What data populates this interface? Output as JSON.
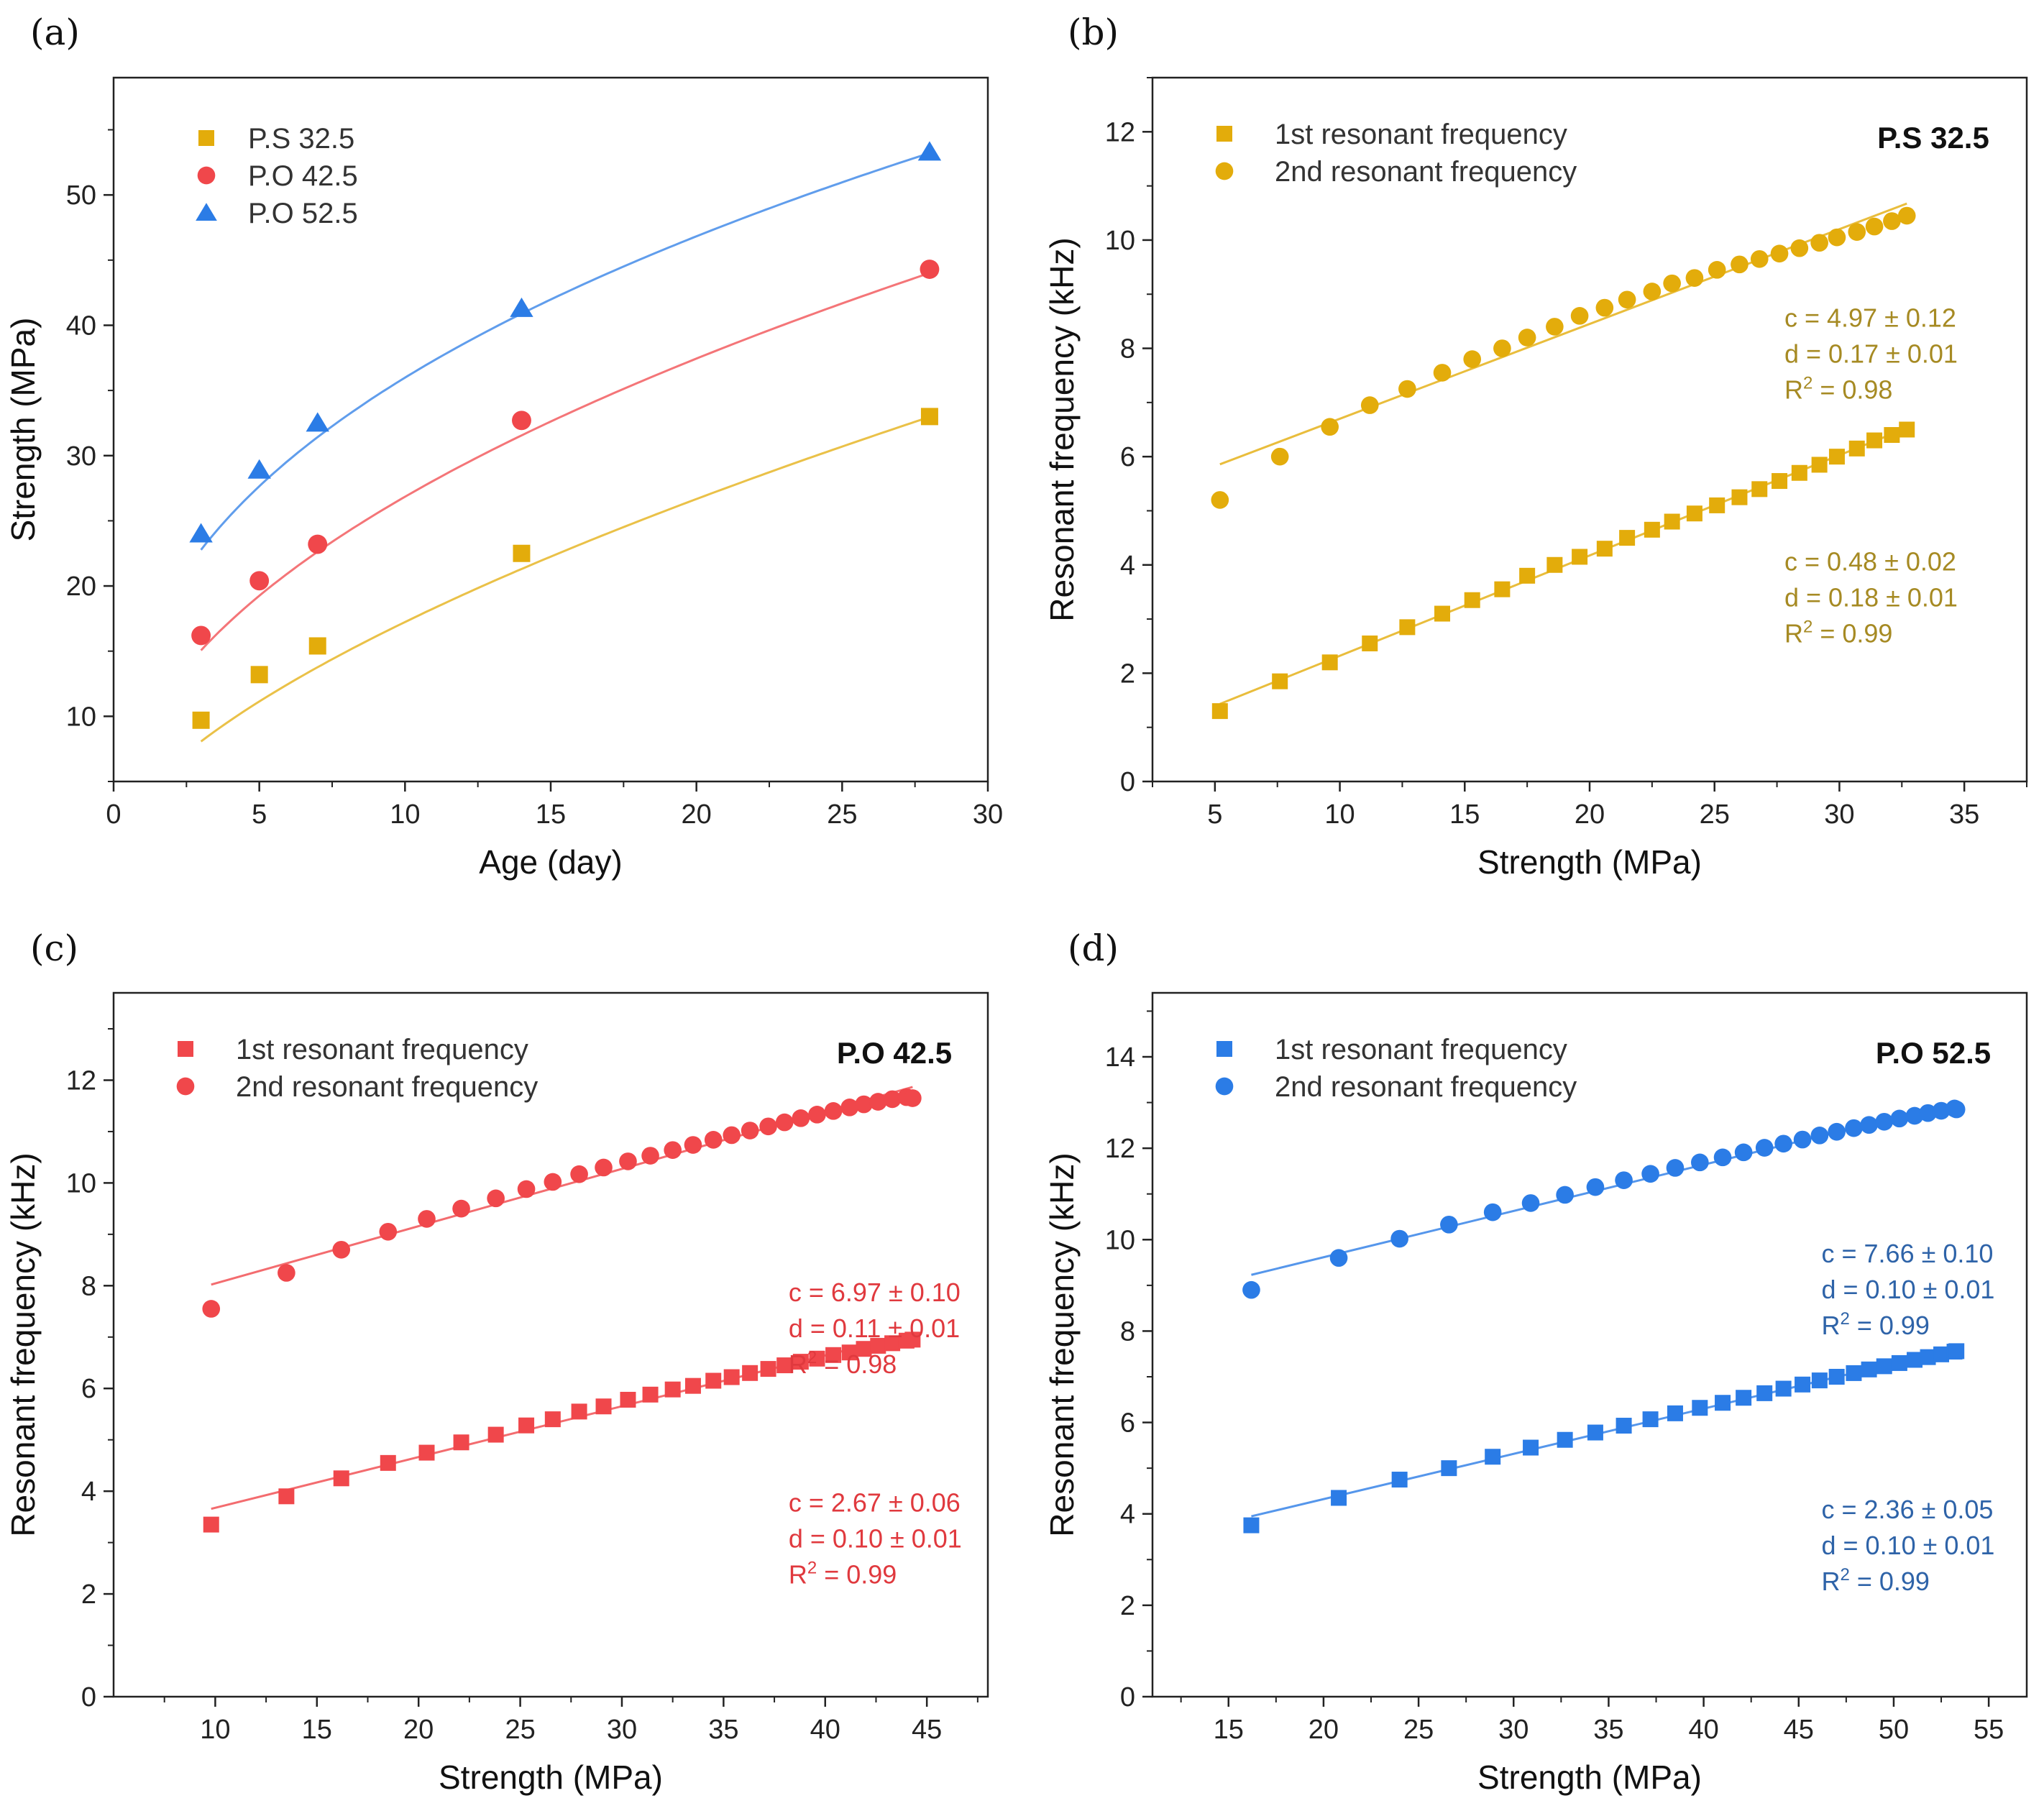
{
  "chart_data": [
    {
      "id": "a",
      "panel_label": "(a)",
      "type": "scatter",
      "xlabel": "Age (day)",
      "ylabel": "Strength (MPa)",
      "xlim": [
        0,
        30
      ],
      "ylim": [
        5,
        59
      ],
      "xticks": [
        0,
        5,
        10,
        15,
        20,
        25,
        30
      ],
      "yticks": [
        10,
        20,
        30,
        40,
        50
      ],
      "legend_position": "top-left",
      "series": [
        {
          "name": "P.S 32.5",
          "marker": "square",
          "color": "#E3AC0B",
          "x": [
            3,
            5,
            7,
            14,
            28
          ],
          "y": [
            9.7,
            13.2,
            15.4,
            22.5,
            33.0
          ],
          "fit": {
            "a": 4.04,
            "b": 0.63
          }
        },
        {
          "name": "P.O 42.5",
          "marker": "circle",
          "color": "#F0474B",
          "x": [
            3,
            5,
            7,
            14,
            28
          ],
          "y": [
            16.2,
            20.4,
            23.2,
            32.7,
            44.3
          ],
          "fit": {
            "a": 8.89,
            "b": 0.48
          }
        },
        {
          "name": "P.O 52.5",
          "marker": "triangle",
          "color": "#2B7CE6",
          "x": [
            3,
            5,
            7,
            14,
            28
          ],
          "y": [
            24.0,
            28.9,
            32.5,
            41.3,
            53.3
          ],
          "fit": {
            "a": 15.0,
            "b": 0.38
          }
        }
      ]
    },
    {
      "id": "b",
      "panel_label": "(b)",
      "type": "scatter",
      "badge": "P.S 32.5",
      "color": "#E3AC0B",
      "anno_color": "#A68A23",
      "xlabel": "Strength (MPa)",
      "ylabel": "Resonant frequency (kHz)",
      "xlim": [
        2.5,
        37.5
      ],
      "ylim": [
        0,
        13
      ],
      "xticks": [
        5,
        10,
        15,
        20,
        25,
        30,
        35
      ],
      "yticks": [
        0,
        2,
        4,
        6,
        8,
        10,
        12
      ],
      "legend_position": "top-left",
      "legend": [
        "1st resonant frequency",
        "2nd resonant frequency"
      ],
      "series": [
        {
          "name": "1st resonant frequency",
          "marker": "square",
          "c": 0.48,
          "d": 0.18,
          "x": [
            5.2,
            7.6,
            9.6,
            11.2,
            12.7,
            14.1,
            15.3,
            16.5,
            17.5,
            18.6,
            19.6,
            20.6,
            21.5,
            22.5,
            23.3,
            24.2,
            25.1,
            26.0,
            26.8,
            27.6,
            28.4,
            29.2,
            29.9,
            30.7,
            31.4,
            32.1,
            32.7
          ],
          "y": [
            1.3,
            1.85,
            2.2,
            2.55,
            2.85,
            3.1,
            3.35,
            3.55,
            3.8,
            4.0,
            4.15,
            4.3,
            4.5,
            4.65,
            4.8,
            4.95,
            5.1,
            5.25,
            5.4,
            5.55,
            5.7,
            5.85,
            6.0,
            6.15,
            6.3,
            6.4,
            6.5
          ]
        },
        {
          "name": "2nd resonant frequency",
          "marker": "circle",
          "c": 4.97,
          "d": 0.17,
          "x": [
            5.2,
            7.6,
            9.6,
            11.2,
            12.7,
            14.1,
            15.3,
            16.5,
            17.5,
            18.6,
            19.6,
            20.6,
            21.5,
            22.5,
            23.3,
            24.2,
            25.1,
            26.0,
            26.8,
            27.6,
            28.4,
            29.2,
            29.9,
            30.7,
            31.4,
            32.1,
            32.7
          ],
          "y": [
            5.2,
            6.0,
            6.55,
            6.95,
            7.25,
            7.55,
            7.8,
            8.0,
            8.2,
            8.4,
            8.6,
            8.75,
            8.9,
            9.05,
            9.2,
            9.3,
            9.45,
            9.55,
            9.65,
            9.75,
            9.85,
            9.95,
            10.05,
            10.15,
            10.25,
            10.35,
            10.45
          ]
        }
      ],
      "annotations": [
        {
          "line1": "c = 4.97 ± 0.12",
          "line2": "d = 0.17 ± 0.01",
          "r2_value": "= 0.98",
          "anchor_x": 27.8,
          "anchor_y": 8.4
        },
        {
          "line1": "c = 0.48 ± 0.02",
          "line2": "d = 0.18 ± 0.01",
          "r2_value": "= 0.99",
          "anchor_x": 27.8,
          "anchor_y": 3.9
        }
      ]
    },
    {
      "id": "c",
      "panel_label": "(c)",
      "type": "scatter",
      "badge": "P.O 42.5",
      "color": "#F0474B",
      "anno_color": "#E0393E",
      "xlabel": "Strength (MPa)",
      "ylabel": "Resonant frequency (kHz)",
      "xlim": [
        5,
        48
      ],
      "ylim": [
        0,
        13.7
      ],
      "xticks": [
        10,
        15,
        20,
        25,
        30,
        35,
        40,
        45
      ],
      "yticks": [
        0,
        2,
        4,
        6,
        8,
        10,
        12
      ],
      "legend_position": "top-left",
      "legend": [
        "1st resonant frequency",
        "2nd resonant frequency"
      ],
      "series": [
        {
          "name": "1st resonant frequency",
          "marker": "square",
          "c": 2.67,
          "d": 0.1,
          "x": [
            9.8,
            13.5,
            16.2,
            18.5,
            20.4,
            22.1,
            23.8,
            25.3,
            26.6,
            27.9,
            29.1,
            30.3,
            31.4,
            32.5,
            33.5,
            34.5,
            35.4,
            36.3,
            37.2,
            38.0,
            38.8,
            39.6,
            40.4,
            41.2,
            41.9,
            42.6,
            43.3,
            44.0,
            44.3
          ],
          "y": [
            3.35,
            3.9,
            4.25,
            4.55,
            4.75,
            4.95,
            5.1,
            5.28,
            5.4,
            5.55,
            5.65,
            5.78,
            5.88,
            5.98,
            6.05,
            6.15,
            6.22,
            6.3,
            6.38,
            6.45,
            6.52,
            6.58,
            6.65,
            6.7,
            6.77,
            6.83,
            6.88,
            6.93,
            6.95
          ]
        },
        {
          "name": "2nd resonant frequency",
          "marker": "circle",
          "c": 6.97,
          "d": 0.11,
          "x": [
            9.8,
            13.5,
            16.2,
            18.5,
            20.4,
            22.1,
            23.8,
            25.3,
            26.6,
            27.9,
            29.1,
            30.3,
            31.4,
            32.5,
            33.5,
            34.5,
            35.4,
            36.3,
            37.2,
            38.0,
            38.8,
            39.6,
            40.4,
            41.2,
            41.9,
            42.6,
            43.3,
            44.0,
            44.3
          ],
          "y": [
            7.55,
            8.25,
            8.7,
            9.05,
            9.3,
            9.5,
            9.7,
            9.88,
            10.02,
            10.17,
            10.3,
            10.42,
            10.53,
            10.64,
            10.74,
            10.84,
            10.93,
            11.02,
            11.1,
            11.18,
            11.26,
            11.33,
            11.4,
            11.47,
            11.53,
            11.58,
            11.63,
            11.67,
            11.65
          ]
        }
      ],
      "annotations": [
        {
          "line1": "c = 6.97 ± 0.10",
          "line2": "d = 0.11 ± 0.01",
          "r2_value": "= 0.98",
          "anchor_x": 38.2,
          "anchor_y": 7.7
        },
        {
          "line1": "c = 2.67 ± 0.06",
          "line2": "d = 0.10 ± 0.01",
          "r2_value": "= 0.99",
          "anchor_x": 38.2,
          "anchor_y": 3.6
        }
      ]
    },
    {
      "id": "d",
      "panel_label": "(d)",
      "type": "scatter",
      "badge": "P.O 52.5",
      "color": "#2B7CE6",
      "anno_color": "#2E63A8",
      "xlabel": "Strength (MPa)",
      "ylabel": "Resonant frequency (kHz)",
      "xlim": [
        11,
        57
      ],
      "ylim": [
        0,
        15.4
      ],
      "xticks": [
        15,
        20,
        25,
        30,
        35,
        40,
        45,
        50,
        55
      ],
      "yticks": [
        0,
        2,
        4,
        6,
        8,
        10,
        12,
        14
      ],
      "legend_position": "top-left",
      "legend": [
        "1st resonant frequency",
        "2nd resonant frequency"
      ],
      "series": [
        {
          "name": "1st resonant frequency",
          "marker": "square",
          "c": 2.36,
          "d": 0.1,
          "x": [
            16.2,
            20.8,
            24.0,
            26.6,
            28.9,
            30.9,
            32.7,
            34.3,
            35.8,
            37.2,
            38.5,
            39.8,
            41.0,
            42.1,
            43.2,
            44.2,
            45.2,
            46.1,
            47.0,
            47.9,
            48.7,
            49.5,
            50.3,
            51.1,
            51.8,
            52.5,
            53.2,
            53.3
          ],
          "y": [
            3.75,
            4.35,
            4.75,
            5.0,
            5.25,
            5.45,
            5.62,
            5.78,
            5.93,
            6.07,
            6.2,
            6.32,
            6.43,
            6.54,
            6.64,
            6.74,
            6.83,
            6.92,
            7.0,
            7.08,
            7.16,
            7.23,
            7.3,
            7.37,
            7.43,
            7.49,
            7.55,
            7.56
          ]
        },
        {
          "name": "2nd resonant frequency",
          "marker": "circle",
          "c": 7.66,
          "d": 0.1,
          "x": [
            16.2,
            20.8,
            24.0,
            26.6,
            28.9,
            30.9,
            32.7,
            34.3,
            35.8,
            37.2,
            38.5,
            39.8,
            41.0,
            42.1,
            43.2,
            44.2,
            45.2,
            46.1,
            47.0,
            47.9,
            48.7,
            49.5,
            50.3,
            51.1,
            51.8,
            52.5,
            53.2,
            53.3
          ],
          "y": [
            8.9,
            9.6,
            10.02,
            10.33,
            10.6,
            10.8,
            10.98,
            11.15,
            11.3,
            11.44,
            11.57,
            11.69,
            11.8,
            11.91,
            12.01,
            12.1,
            12.19,
            12.28,
            12.36,
            12.44,
            12.51,
            12.58,
            12.65,
            12.71,
            12.77,
            12.82,
            12.87,
            12.85
          ]
        }
      ],
      "annotations": [
        {
          "line1": "c = 7.66 ± 0.10",
          "line2": "d = 0.10 ± 0.01",
          "r2_value": "= 0.99",
          "anchor_x": 46.2,
          "anchor_y": 9.5
        },
        {
          "line1": "c = 2.36 ± 0.05",
          "line2": "d = 0.10 ± 0.01",
          "r2_value": "= 0.99",
          "anchor_x": 46.2,
          "anchor_y": 3.9
        }
      ]
    }
  ]
}
